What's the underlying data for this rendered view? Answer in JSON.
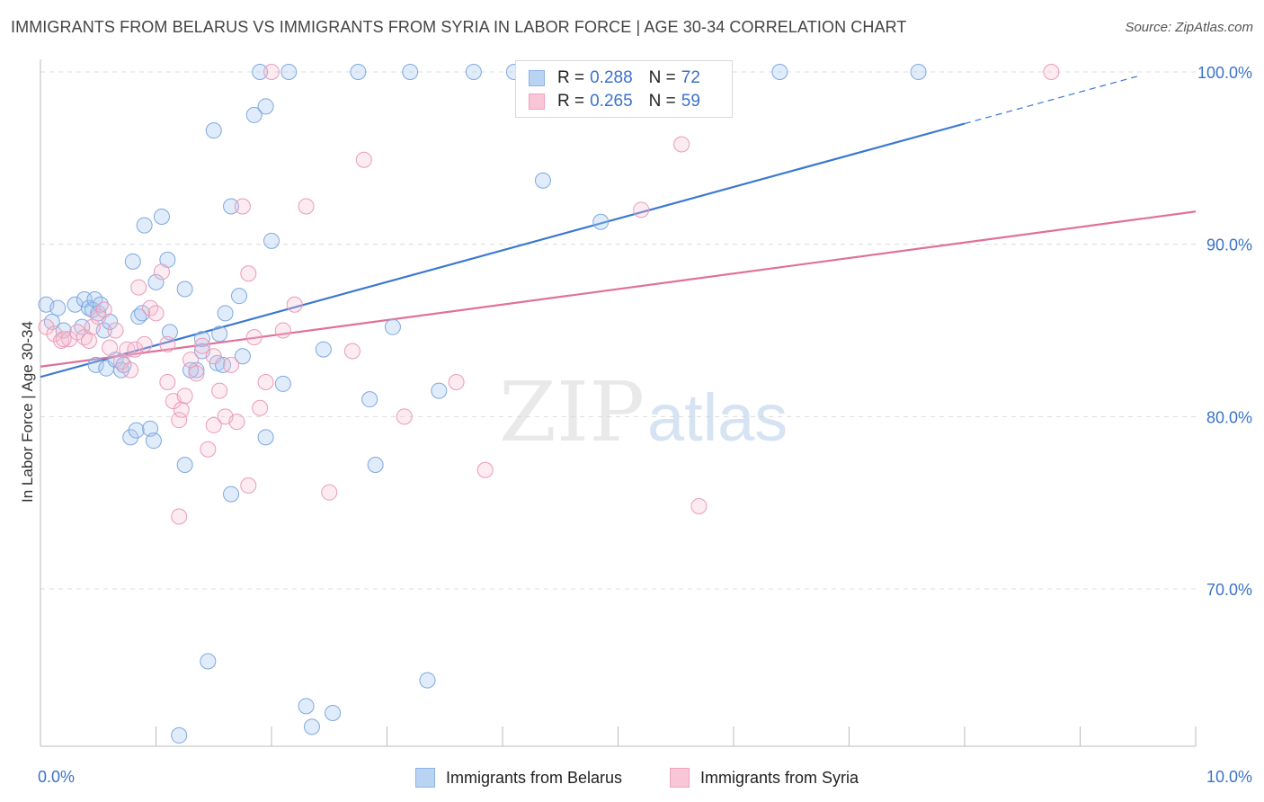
{
  "title": "IMMIGRANTS FROM BELARUS VS IMMIGRANTS FROM SYRIA IN LABOR FORCE | AGE 30-34 CORRELATION CHART",
  "source": "Source: ZipAtlas.com",
  "watermark": {
    "zip": "ZIP",
    "atlas": "atlas"
  },
  "legend": {
    "r_label": "R =",
    "n_label": "N =",
    "rows": [
      {
        "series": "Immigrants from Belarus",
        "r": "0.288",
        "n": "72"
      },
      {
        "series": "Immigrants from Syria",
        "r": "0.265",
        "n": "59"
      }
    ]
  },
  "bottom_legend": [
    "Immigrants from Belarus",
    "Immigrants from Syria"
  ],
  "colors": {
    "belarus": "#3a78d0",
    "syria": "#e0709a",
    "tick_text": "#3a72c9"
  },
  "chart_data": {
    "type": "scatter",
    "title": "IMMIGRANTS FROM BELARUS VS IMMIGRANTS FROM SYRIA IN LABOR FORCE | AGE 30-34 CORRELATION CHART",
    "xlabel": "",
    "ylabel": "In Labor Force | Age 30-34",
    "xlim": [
      0,
      10
    ],
    "ylim": [
      61,
      101.5
    ],
    "x_tick_labels": [
      "0.0%",
      "10.0%"
    ],
    "y_ticks": [
      70,
      80,
      90,
      100
    ],
    "y_tick_labels": [
      "70.0%",
      "80.0%",
      "90.0%",
      "100.0%"
    ],
    "grid": true,
    "series": [
      {
        "name": "Immigrants from Belarus",
        "r": 0.288,
        "n": 72,
        "trend": {
          "x0": 0,
          "y0": 82.3,
          "x1": 8.0,
          "y1": 97.0,
          "dash_to_x": 9.5
        },
        "points": [
          [
            0.05,
            86.5
          ],
          [
            0.1,
            85.5
          ],
          [
            0.15,
            86.3
          ],
          [
            0.2,
            85.0
          ],
          [
            0.3,
            86.5
          ],
          [
            0.38,
            86.8
          ],
          [
            0.42,
            86.3
          ],
          [
            0.45,
            86.2
          ],
          [
            0.47,
            86.8
          ],
          [
            0.5,
            86.0
          ],
          [
            0.55,
            85.0
          ],
          [
            0.6,
            85.5
          ],
          [
            0.48,
            83.0
          ],
          [
            0.57,
            82.8
          ],
          [
            0.65,
            83.3
          ],
          [
            0.7,
            82.7
          ],
          [
            0.72,
            83.0
          ],
          [
            0.8,
            89.0
          ],
          [
            0.85,
            85.8
          ],
          [
            0.9,
            91.1
          ],
          [
            1.0,
            87.8
          ],
          [
            1.05,
            91.6
          ],
          [
            1.1,
            89.1
          ],
          [
            1.12,
            84.9
          ],
          [
            1.25,
            87.4
          ],
          [
            1.35,
            82.7
          ],
          [
            1.3,
            82.7
          ],
          [
            1.4,
            83.8
          ],
          [
            1.4,
            84.5
          ],
          [
            1.55,
            84.8
          ],
          [
            1.53,
            83.1
          ],
          [
            1.6,
            86.0
          ],
          [
            1.72,
            87.0
          ],
          [
            1.75,
            83.5
          ],
          [
            0.78,
            78.8
          ],
          [
            0.83,
            79.2
          ],
          [
            0.95,
            79.3
          ],
          [
            0.98,
            78.6
          ],
          [
            1.25,
            77.2
          ],
          [
            1.65,
            75.5
          ],
          [
            1.95,
            78.8
          ],
          [
            2.0,
            90.2
          ],
          [
            2.1,
            81.9
          ],
          [
            2.45,
            83.9
          ],
          [
            2.85,
            81.0
          ],
          [
            2.9,
            77.2
          ],
          [
            3.05,
            85.2
          ],
          [
            3.45,
            81.5
          ],
          [
            1.5,
            96.6
          ],
          [
            1.65,
            92.2
          ],
          [
            1.85,
            97.5
          ],
          [
            1.95,
            98.0
          ],
          [
            1.9,
            100.0
          ],
          [
            2.15,
            100.0
          ],
          [
            2.75,
            100.0
          ],
          [
            3.2,
            100.0
          ],
          [
            3.75,
            100.0
          ],
          [
            4.1,
            100.0
          ],
          [
            4.35,
            93.7
          ],
          [
            4.85,
            91.3
          ],
          [
            6.4,
            100.0
          ],
          [
            7.6,
            100.0
          ],
          [
            1.45,
            65.8
          ],
          [
            1.2,
            61.5
          ],
          [
            2.3,
            63.2
          ],
          [
            2.35,
            62.0
          ],
          [
            2.53,
            62.8
          ],
          [
            3.35,
            64.7
          ],
          [
            1.58,
            83.0
          ],
          [
            0.52,
            86.5
          ],
          [
            0.88,
            86.0
          ],
          [
            0.36,
            85.2
          ]
        ]
      },
      {
        "name": "Immigrants from Syria",
        "r": 0.265,
        "n": 59,
        "trend": {
          "x0": 0,
          "y0": 82.9,
          "x1": 10.0,
          "y1": 91.9
        },
        "points": [
          [
            0.05,
            85.2
          ],
          [
            0.12,
            84.8
          ],
          [
            0.18,
            84.4
          ],
          [
            0.25,
            84.5
          ],
          [
            0.32,
            84.9
          ],
          [
            0.38,
            84.6
          ],
          [
            0.45,
            85.2
          ],
          [
            0.5,
            85.8
          ],
          [
            0.55,
            86.2
          ],
          [
            0.6,
            84.0
          ],
          [
            0.65,
            85.0
          ],
          [
            0.7,
            83.2
          ],
          [
            0.75,
            83.9
          ],
          [
            0.78,
            82.7
          ],
          [
            0.82,
            83.9
          ],
          [
            0.9,
            84.2
          ],
          [
            0.95,
            86.3
          ],
          [
            1.0,
            86.0
          ],
          [
            1.05,
            88.4
          ],
          [
            1.1,
            82.0
          ],
          [
            1.15,
            80.9
          ],
          [
            1.2,
            79.8
          ],
          [
            1.22,
            80.4
          ],
          [
            1.25,
            81.2
          ],
          [
            1.3,
            83.3
          ],
          [
            1.35,
            82.5
          ],
          [
            1.4,
            84.1
          ],
          [
            1.45,
            78.1
          ],
          [
            1.5,
            83.5
          ],
          [
            1.55,
            81.5
          ],
          [
            1.6,
            80.0
          ],
          [
            1.65,
            83.0
          ],
          [
            1.7,
            79.7
          ],
          [
            1.75,
            92.2
          ],
          [
            1.8,
            88.3
          ],
          [
            1.85,
            84.6
          ],
          [
            1.9,
            80.5
          ],
          [
            1.95,
            82.0
          ],
          [
            2.1,
            85.0
          ],
          [
            2.2,
            86.5
          ],
          [
            2.3,
            92.2
          ],
          [
            2.5,
            75.6
          ],
          [
            2.7,
            83.8
          ],
          [
            2.8,
            94.9
          ],
          [
            3.15,
            80.0
          ],
          [
            3.6,
            82.0
          ],
          [
            3.85,
            76.9
          ],
          [
            5.2,
            92.0
          ],
          [
            5.55,
            95.8
          ],
          [
            5.7,
            74.8
          ],
          [
            8.75,
            100.0
          ],
          [
            1.2,
            74.2
          ],
          [
            1.5,
            79.5
          ],
          [
            1.8,
            76.0
          ],
          [
            2.0,
            100.0
          ],
          [
            1.1,
            84.2
          ],
          [
            0.85,
            87.5
          ],
          [
            0.42,
            84.4
          ],
          [
            0.2,
            84.5
          ]
        ]
      }
    ]
  }
}
